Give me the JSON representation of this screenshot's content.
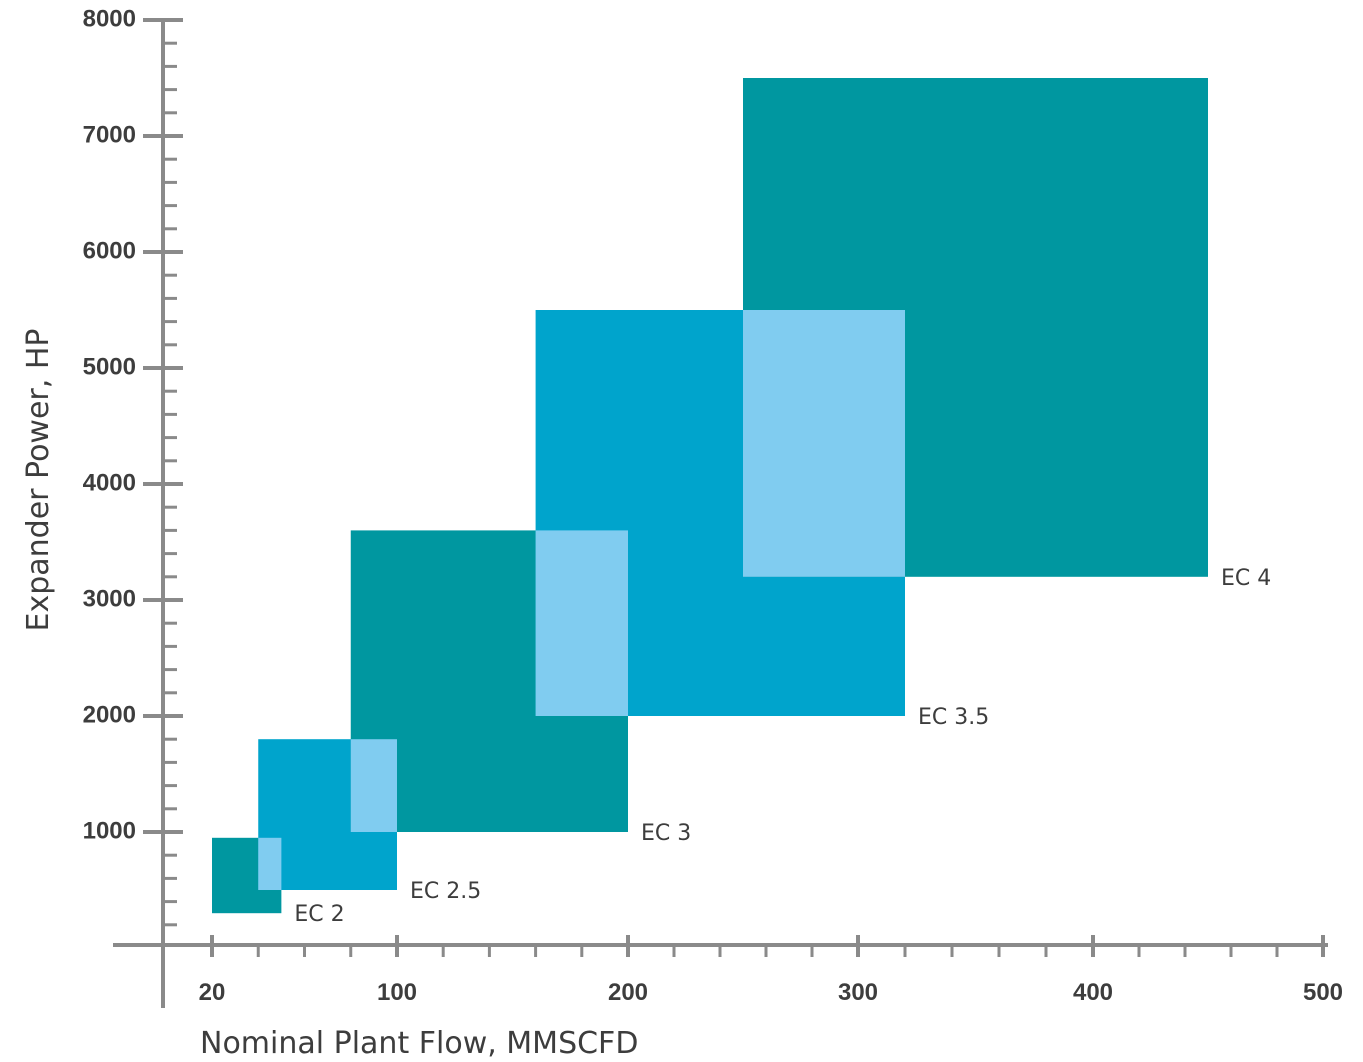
{
  "chart_data": {
    "type": "range-rectangles",
    "xlabel": "Nominal Plant Flow, MMSCFD",
    "ylabel": "Expander Power, HP",
    "xlim": [
      0,
      500
    ],
    "ylim": [
      0,
      8000
    ],
    "x_ticks": [
      20,
      100,
      200,
      300,
      400,
      500
    ],
    "y_ticks": [
      1000,
      2000,
      3000,
      4000,
      5000,
      6000,
      7000,
      8000
    ],
    "grid": false,
    "colors": {
      "teal": "#0097a0",
      "blue": "#00a4cc",
      "overlap": "#80ccf0",
      "axis": "#8a8a8a",
      "text": "#3d3d3d"
    },
    "series": [
      {
        "name": "EC 2",
        "x": [
          20,
          50
        ],
        "y": [
          300,
          950
        ],
        "color": "teal"
      },
      {
        "name": "EC 2.5",
        "x": [
          40,
          100
        ],
        "y": [
          500,
          1800
        ],
        "color": "blue"
      },
      {
        "name": "EC 3",
        "x": [
          80,
          200
        ],
        "y": [
          1000,
          3600
        ],
        "color": "teal"
      },
      {
        "name": "EC 3.5",
        "x": [
          160,
          320
        ],
        "y": [
          2000,
          5500
        ],
        "color": "blue"
      },
      {
        "name": "EC 4",
        "x": [
          250,
          450
        ],
        "y": [
          3200,
          7500
        ],
        "color": "teal"
      }
    ],
    "overlaps": [
      {
        "between": [
          "EC 2",
          "EC 2.5"
        ],
        "x": [
          40,
          50
        ],
        "y": [
          500,
          950
        ]
      },
      {
        "between": [
          "EC 2.5",
          "EC 3"
        ],
        "x": [
          80,
          100
        ],
        "y": [
          1000,
          1800
        ]
      },
      {
        "between": [
          "EC 3",
          "EC 3.5"
        ],
        "x": [
          160,
          200
        ],
        "y": [
          2000,
          3600
        ]
      },
      {
        "between": [
          "EC 3.5",
          "EC 4"
        ],
        "x": [
          250,
          320
        ],
        "y": [
          3200,
          5500
        ]
      }
    ]
  }
}
